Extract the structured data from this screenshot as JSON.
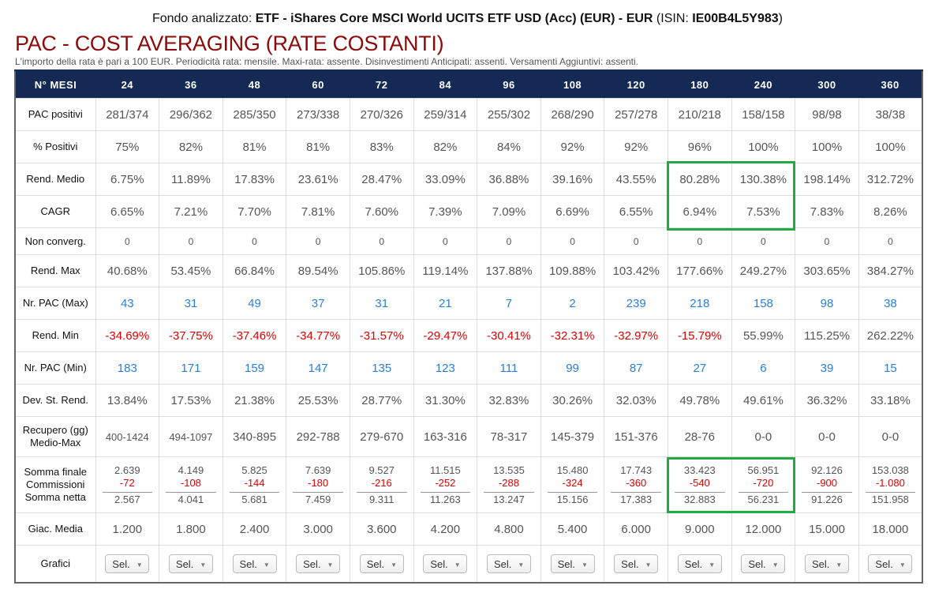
{
  "header": {
    "fund_prefix": "Fondo analizzato: ",
    "fund_name": "ETF - iShares Core MSCI World UCITS ETF USD (Acc) (EUR) - EUR",
    "isin_prefix": " (ISIN: ",
    "isin": "IE00B4L5Y983",
    "isin_suffix": ")",
    "title": "PAC - COST AVERAGING (RATE COSTANTI)",
    "subtitle": "L'importo della rata è pari a 100 EUR. Periodicità rata: mensile. Maxi-rata: assente. Disinvestimenti Anticipati: assenti. Versamenti Aggiuntivi: assenti."
  },
  "table": {
    "header_label": "N° MESI",
    "months": [
      "24",
      "36",
      "48",
      "60",
      "72",
      "84",
      "96",
      "108",
      "120",
      "180",
      "240",
      "300",
      "360"
    ],
    "rows": [
      {
        "label": "PAC positivi",
        "values": [
          "281/374",
          "296/362",
          "285/350",
          "273/338",
          "270/326",
          "259/314",
          "255/302",
          "268/290",
          "257/278",
          "210/218",
          "158/158",
          "98/98",
          "38/38"
        ]
      },
      {
        "label": "% Positivi",
        "values": [
          "75%",
          "82%",
          "81%",
          "81%",
          "83%",
          "82%",
          "84%",
          "92%",
          "92%",
          "96%",
          "100%",
          "100%",
          "100%"
        ]
      },
      {
        "label": "Rend. Medio",
        "values": [
          "6.75%",
          "11.89%",
          "17.83%",
          "23.61%",
          "28.47%",
          "33.09%",
          "36.88%",
          "39.16%",
          "43.55%",
          "80.28%",
          "130.38%",
          "198.14%",
          "312.72%"
        ]
      },
      {
        "label": "CAGR",
        "values": [
          "6.65%",
          "7.21%",
          "7.70%",
          "7.81%",
          "7.60%",
          "7.39%",
          "7.09%",
          "6.69%",
          "6.55%",
          "6.94%",
          "7.53%",
          "7.83%",
          "8.26%"
        ]
      },
      {
        "label": "Non converg.",
        "values": [
          "0",
          "0",
          "0",
          "0",
          "0",
          "0",
          "0",
          "0",
          "0",
          "0",
          "0",
          "0",
          "0"
        ]
      },
      {
        "label": "Rend. Max",
        "values": [
          "40.68%",
          "53.45%",
          "66.84%",
          "89.54%",
          "105.86%",
          "119.14%",
          "137.88%",
          "109.88%",
          "103.42%",
          "177.66%",
          "249.27%",
          "303.65%",
          "384.27%"
        ]
      },
      {
        "label": "Nr. PAC (Max)",
        "values": [
          "43",
          "31",
          "49",
          "37",
          "31",
          "21",
          "7",
          "2",
          "239",
          "218",
          "158",
          "98",
          "38"
        ]
      },
      {
        "label": "Rend. Min",
        "values": [
          "-34.69%",
          "-37.75%",
          "-37.46%",
          "-34.77%",
          "-31.57%",
          "-29.47%",
          "-30.41%",
          "-32.31%",
          "-32.97%",
          "-15.79%",
          "55.99%",
          "115.25%",
          "262.22%"
        ]
      },
      {
        "label": "Nr. PAC (Min)",
        "values": [
          "183",
          "171",
          "159",
          "147",
          "135",
          "123",
          "111",
          "99",
          "87",
          "27",
          "6",
          "39",
          "15"
        ]
      },
      {
        "label": "Dev. St. Rend.",
        "values": [
          "13.84%",
          "17.53%",
          "21.38%",
          "25.53%",
          "28.77%",
          "31.30%",
          "32.83%",
          "30.26%",
          "32.03%",
          "49.78%",
          "49.61%",
          "36.32%",
          "33.18%"
        ]
      },
      {
        "label": "Recupero (gg)",
        "label2": "Medio-Max",
        "values": [
          "400-1424",
          "494-1097",
          "340-895",
          "292-788",
          "279-670",
          "163-316",
          "78-317",
          "145-379",
          "151-376",
          "28-76",
          "0-0",
          "0-0",
          "0-0"
        ]
      }
    ],
    "somma": {
      "labels": [
        "Somma finale",
        "Commissioni",
        "Somma netta"
      ],
      "finale": [
        "2.639",
        "4.149",
        "5.825",
        "7.639",
        "9.527",
        "11.515",
        "13.535",
        "15.480",
        "17.743",
        "33.423",
        "56.951",
        "92.126",
        "153.038"
      ],
      "commissioni": [
        "-72",
        "-108",
        "-144",
        "-180",
        "-216",
        "-252",
        "-288",
        "-324",
        "-360",
        "-540",
        "-720",
        "-900",
        "-1.080"
      ],
      "netta": [
        "2.567",
        "4.041",
        "5.681",
        "7.459",
        "9.311",
        "11.263",
        "13.247",
        "15.156",
        "17.383",
        "32.883",
        "56.231",
        "91.226",
        "151.958"
      ]
    },
    "giacenza": {
      "label": "Giac. Media",
      "values": [
        "1.200",
        "1.800",
        "2.400",
        "3.000",
        "3.600",
        "4.200",
        "4.800",
        "5.400",
        "6.000",
        "9.000",
        "12.000",
        "15.000",
        "18.000"
      ]
    },
    "grafici": {
      "label": "Grafici",
      "select_label": "Sel."
    }
  },
  "colors": {
    "header_bg": "#142a55",
    "title": "#8b0a0a",
    "positive_link": "#2a7ed8",
    "negative": "#dd0000",
    "highlight": "#22aa44"
  }
}
